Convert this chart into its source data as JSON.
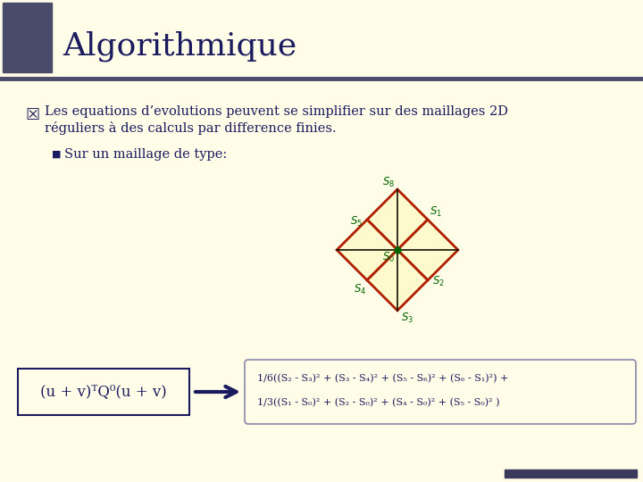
{
  "bg_color": "#FFFDE8",
  "title": "Algorithmique",
  "title_color": "#1a1a5e",
  "title_fontsize": 26,
  "header_icon_color": "#4a4a6a",
  "header_line_color": "#4a4a6a",
  "bullet1_text1": "Les equations d’evolutions peuvent se simplifier sur des maillages 2D",
  "bullet1_text2": "réguliers à des calculs par difference finies.",
  "bullet2_text": "Sur un maillage de type:",
  "formula_box_text": "(u + v)ᵀQ⁰(u + v)",
  "rhs_line1": "1/6((S₂ - S₃)² + (S₃ - S₄)² + (S₅ - S₆)² + (S₆ - S₁)²) +",
  "rhs_line2": "1/3((S₁ - S₀)² + (S₂ - S₀)² + (S₄ - S₀)² + (S₅ - S₀)² )",
  "grid_color": "#b02000",
  "grid_fill": "#fffacd",
  "diag_color": "#111100",
  "label_color": "#006600",
  "text_color": "#1a1a5e",
  "formula_color": "#1a1a5e",
  "footer_bar_color": "#3a3a5c",
  "arrow_color": "#1a1a5e"
}
